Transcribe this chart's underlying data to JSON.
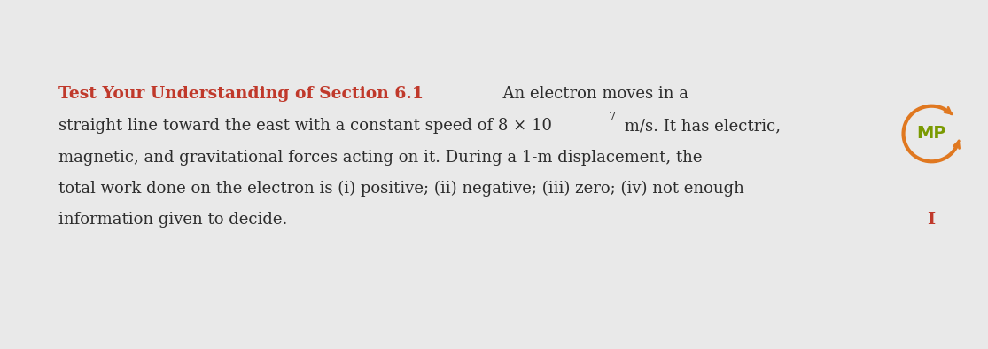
{
  "bg_color": "#e9e9e9",
  "title_text": "Test Your Understanding of Section 6.1",
  "title_color": "#c0392b",
  "body_color": "#2c2c2c",
  "answer_marker": "I",
  "answer_color": "#c0392b",
  "mp_text": "MP",
  "mp_text_color": "#7a9a01",
  "mp_circle_color": "#e07820",
  "font_size_title": 13.5,
  "font_size_body": 13.0,
  "line1_after_title": "  An electron moves in a",
  "line2": "straight line toward the east with a constant speed of 8 × 10",
  "line2_sup": "7",
  "line2_end": " m/s. It has electric,",
  "line3": "magnetic, and gravitational forces acting on it. During a 1-m displacement, the",
  "line4": "total work done on the electron is (i) positive; (ii) negative; (iii) zero; (iv) not enough",
  "line5": "information given to decide."
}
